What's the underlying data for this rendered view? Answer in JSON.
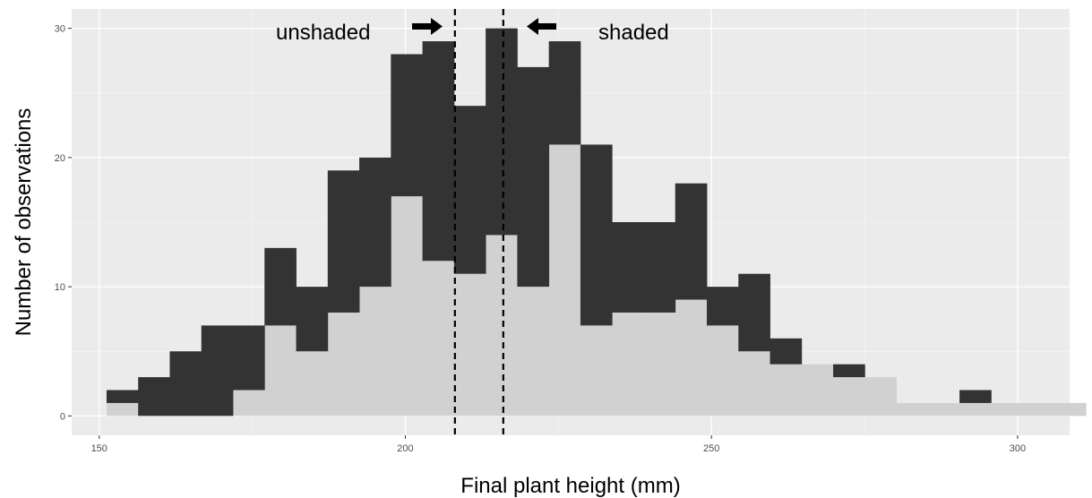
{
  "chart_data": {
    "type": "bar",
    "subtype": "stacked-histogram",
    "title": "",
    "xlabel": "Final plant height (mm)",
    "ylabel": "Number of observations",
    "xlim": [
      145.5,
      308.5
    ],
    "ylim": [
      -1.5,
      31.5
    ],
    "x_ticks": [
      150,
      200,
      250,
      300
    ],
    "y_ticks": [
      0,
      10,
      20,
      30
    ],
    "grid": true,
    "legend": "none",
    "bin_width": 5.16,
    "bin_start": 151.2,
    "series": [
      {
        "colour": "#d1d1d1",
        "values": [
          1,
          0,
          0,
          0,
          2,
          7,
          5,
          8,
          10,
          17,
          12,
          11,
          14,
          10,
          21,
          7,
          8,
          8,
          9,
          7,
          5,
          4,
          4,
          3,
          3,
          1,
          1,
          1,
          1,
          1,
          1,
          0,
          1
        ]
      },
      {
        "colour": "#333333",
        "values": [
          1,
          3,
          5,
          7,
          5,
          6,
          5,
          11,
          10,
          11,
          17,
          13,
          16,
          17,
          8,
          14,
          7,
          7,
          9,
          3,
          6,
          2,
          0,
          1,
          0,
          0,
          0,
          1,
          0,
          0,
          0,
          0,
          0
        ]
      }
    ],
    "annotations": {
      "left_label": "unshaded",
      "right_label": "shaded",
      "vlines": [
        208.1,
        216.0
      ],
      "vline_style": "dashed"
    },
    "colors": {
      "panel": "#ebebeb",
      "grid_major": "#ffffff",
      "grid_minor": "#f5f5f5"
    }
  }
}
